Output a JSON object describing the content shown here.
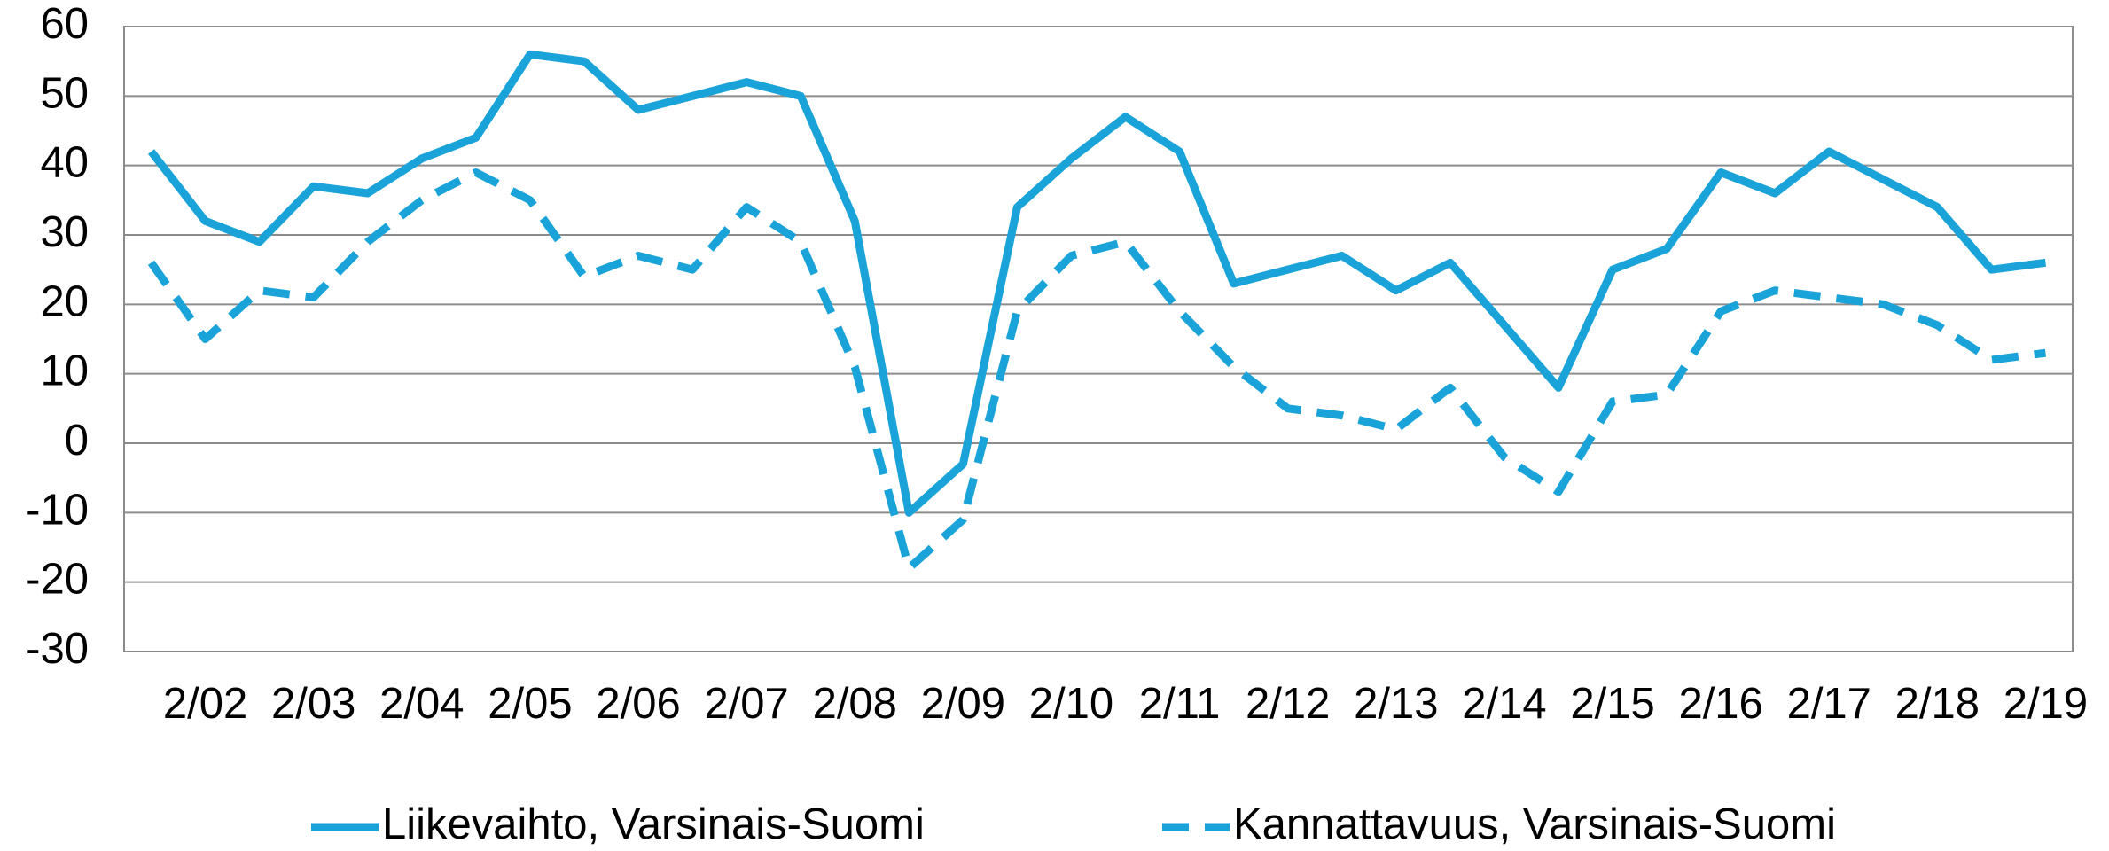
{
  "chart_data": {
    "type": "line",
    "categories": [
      null,
      "2/02",
      null,
      "2/03",
      null,
      "2/04",
      null,
      "2/05",
      null,
      "2/06",
      null,
      "2/07",
      null,
      "2/08",
      null,
      "2/09",
      null,
      "2/10",
      null,
      "2/11",
      null,
      "2/12",
      null,
      "2/13",
      null,
      "2/14",
      null,
      "2/15",
      null,
      "2/16",
      null,
      "2/17",
      null,
      "2/18",
      null,
      "2/19"
    ],
    "series": [
      {
        "name": "Liikevaihto, Varsinais-Suomi",
        "color": "#1aa3d9",
        "style": "solid",
        "values": [
          42,
          32,
          29,
          37,
          36,
          41,
          44,
          56,
          55,
          48,
          50,
          52,
          50,
          32,
          -10,
          -3,
          34,
          41,
          47,
          42,
          23,
          25,
          27,
          22,
          26,
          17,
          8,
          25,
          28,
          39,
          36,
          42,
          38,
          34,
          25,
          26
        ]
      },
      {
        "name": "Kannattavuus, Varsinais-Suomi",
        "color": "#1aa3d9",
        "style": "dashed",
        "values": [
          26,
          15,
          22,
          21,
          29,
          35,
          39,
          35,
          24,
          27,
          25,
          34,
          29,
          11,
          -18,
          -11,
          19,
          27,
          29,
          19,
          11,
          5,
          4,
          2,
          8,
          -2,
          -7,
          6,
          7,
          19,
          22,
          21,
          20,
          17,
          12,
          13
        ]
      }
    ],
    "ylim": [
      -30,
      60
    ],
    "yticks": [
      -30,
      -20,
      -10,
      0,
      10,
      20,
      30,
      40,
      50,
      60
    ],
    "grid": true,
    "legend": "bottom"
  }
}
